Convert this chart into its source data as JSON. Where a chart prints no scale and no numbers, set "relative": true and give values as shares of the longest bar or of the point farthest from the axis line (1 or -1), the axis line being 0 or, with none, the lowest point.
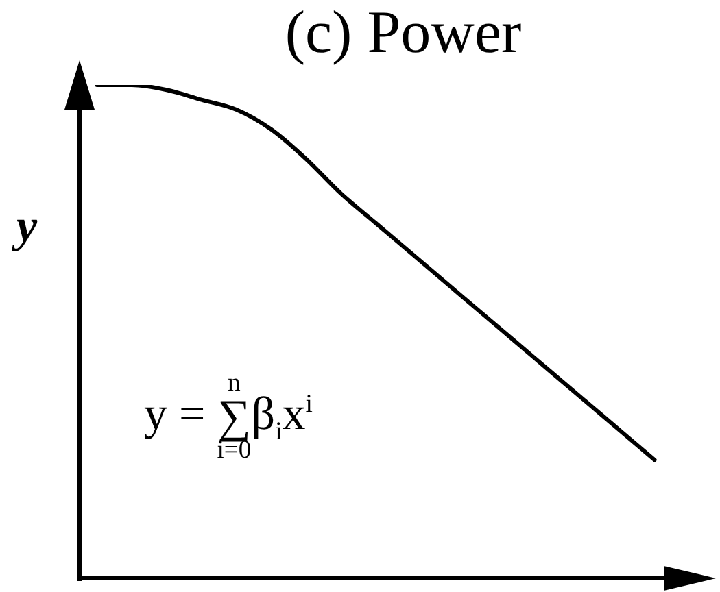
{
  "chart_data": {
    "type": "line",
    "title": "(c) Power",
    "ylabel": "y",
    "annotations": [
      "y = ∑$_{i=0}$$^{n}$β$_{i}$x$^{i}$"
    ],
    "categories": [
      null,
      null,
      null,
      null,
      null,
      null,
      null,
      null,
      null,
      null,
      null,
      null,
      null,
      null,
      null,
      null,
      null
    ],
    "values": [
      1,
      1,
      0.99,
      0.97,
      0.95,
      0.91,
      0.85,
      0.78,
      0.72,
      0.66,
      0.6,
      0.54,
      0.48,
      0.42,
      0.36,
      0.3,
      0.24
    ],
    "color": "#000000",
    "relative": true,
    "marker": "none",
    "line_style": "solid",
    "tick_labels": false
  }
}
